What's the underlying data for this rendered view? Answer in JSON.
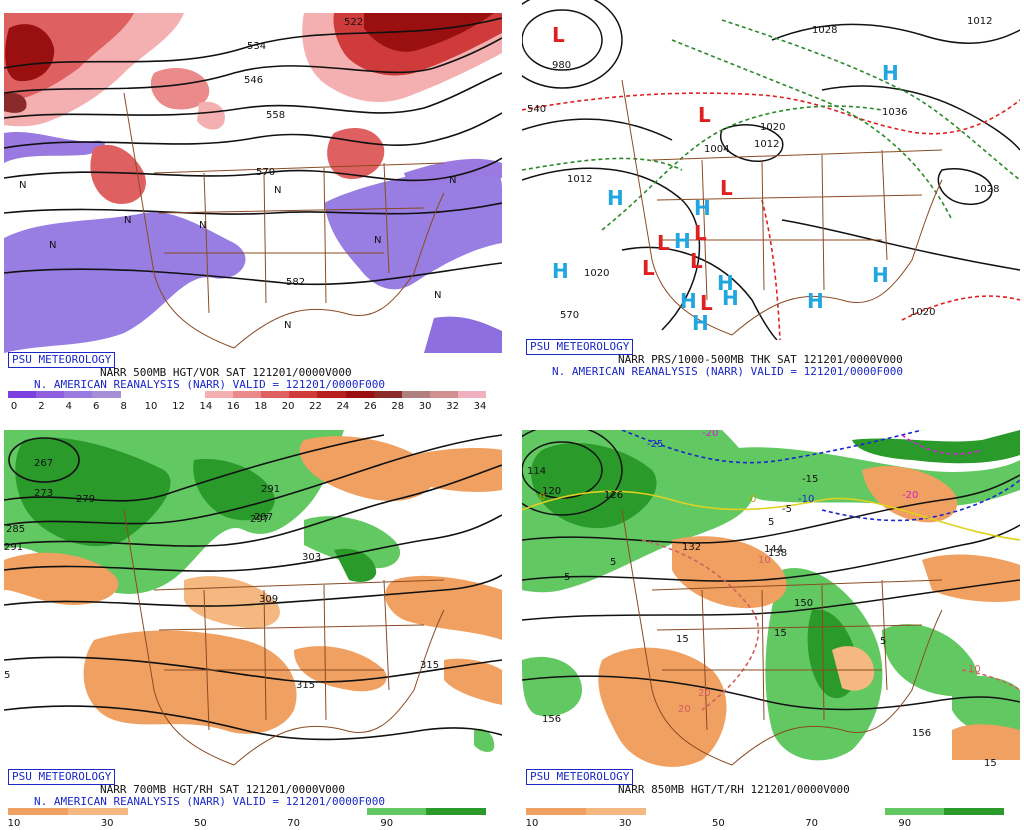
{
  "badge": "PSU METEOROLOGY",
  "panels": [
    {
      "caption1": "NARR 500MB HGT/VOR SAT 121201/0000V000",
      "caption2": "N. AMERICAN REANALYSIS (NARR) VALID = 121201/0000F000",
      "colorbar": {
        "colors": [
          "#7b3fe0",
          "#8f5fe0",
          "#9a7ae0",
          "#a78fd8",
          "#ffffff",
          "#ffffff",
          "#ffffff",
          "#f4b0b0",
          "#ea8a8a",
          "#df6060",
          "#cf3a3a",
          "#b82020",
          "#9a1010",
          "#8a2a2a",
          "#b08080",
          "#d09090",
          "#f0b0c0"
        ],
        "labels": [
          "0",
          "2",
          "4",
          "6",
          "8",
          "10",
          "12",
          "14",
          "16",
          "18",
          "20",
          "22",
          "24",
          "26",
          "28",
          "30",
          "32",
          "34"
        ]
      },
      "contour_labels": [
        "522",
        "534",
        "546",
        "558",
        "570",
        "582"
      ]
    },
    {
      "caption1": "NARR PRS/1000-500MB THK SAT 121201/0000V000",
      "caption2": "N. AMERICAN REANALYSIS (NARR) VALID = 121201/0000F000",
      "contour_labels": [
        "980",
        "1012",
        "1028",
        "1004",
        "1012",
        "1020",
        "1028",
        "1020",
        "1012",
        "1020",
        "1036",
        "570",
        "540"
      ],
      "high_symbol": "H",
      "low_symbol": "L"
    },
    {
      "caption1": "NARR 700MB HGT/RH SAT 121201/0000V000",
      "caption2": "N. AMERICAN REANALYSIS (NARR) VALID = 121201/0000F000",
      "colorbar": {
        "colors": [
          "#f0a060",
          "#f4b880",
          "#ffffff",
          "#ffffff",
          "#ffffff",
          "#ffffff",
          "#62c862",
          "#2a9a2a"
        ],
        "labels": [
          "10",
          "30",
          "50",
          "70",
          "90"
        ]
      },
      "contour_labels": [
        "267",
        "273",
        "279",
        "285",
        "291",
        "297",
        "303",
        "309",
        "315",
        "315",
        "291",
        "297",
        "5"
      ]
    },
    {
      "caption1": "NARR 850MB HGT/T/RH 121201/0000V000",
      "colorbar": {
        "colors": [
          "#f0a060",
          "#f4b880",
          "#ffffff",
          "#ffffff",
          "#ffffff",
          "#ffffff",
          "#62c862",
          "#2a9a2a"
        ],
        "labels": [
          "10",
          "30",
          "50",
          "70",
          "90"
        ]
      },
      "contour_labels": [
        "114",
        "120",
        "126",
        "132",
        "138",
        "144",
        "150",
        "156",
        "156"
      ],
      "temp_labels": [
        "-25",
        "-20",
        "-20",
        "-15",
        "-10",
        "-5",
        "0",
        "0",
        "5",
        "5",
        "5",
        "10",
        "10",
        "15",
        "15",
        "20",
        "20",
        "5",
        "15"
      ]
    }
  ]
}
